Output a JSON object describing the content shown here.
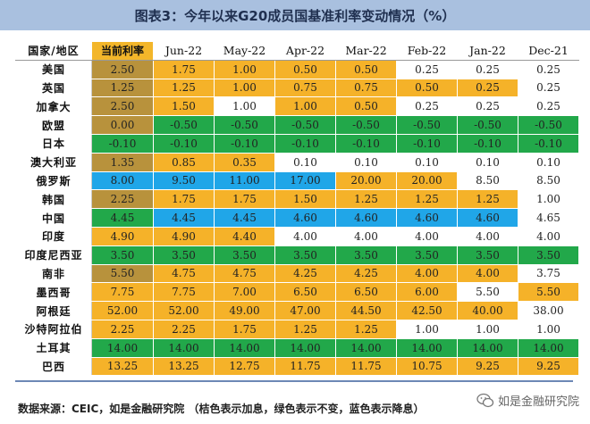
{
  "title": "图表3：今年以来G20成员国基准利率变动情况（%）",
  "table": {
    "headers": [
      "国家/地区",
      "当前利率",
      "Jun-22",
      "May-22",
      "Apr-22",
      "Mar-22",
      "Feb-22",
      "Jan-22",
      "Dec-21"
    ],
    "rows": [
      {
        "country": "美国",
        "values": [
          "2.50",
          "1.75",
          "1.00",
          "0.50",
          "0.50",
          "0.25",
          "0.25",
          "0.25"
        ],
        "colors": [
          "d",
          "o",
          "o",
          "o",
          "o",
          "w",
          "w",
          "w"
        ]
      },
      {
        "country": "英国",
        "values": [
          "1.25",
          "1.25",
          "1.00",
          "0.75",
          "0.75",
          "0.50",
          "0.25",
          "0.25"
        ],
        "colors": [
          "d",
          "o",
          "o",
          "o",
          "o",
          "o",
          "o",
          "w"
        ]
      },
      {
        "country": "加拿大",
        "values": [
          "2.50",
          "1.50",
          "1.00",
          "1.00",
          "0.50",
          "0.25",
          "0.25",
          "0.25"
        ],
        "colors": [
          "d",
          "o",
          "w",
          "o",
          "o",
          "w",
          "w",
          "w"
        ]
      },
      {
        "country": "欧盟",
        "values": [
          "0.00",
          "-0.50",
          "-0.50",
          "-0.50",
          "-0.50",
          "-0.50",
          "-0.50",
          "-0.50"
        ],
        "colors": [
          "d",
          "g",
          "g",
          "g",
          "g",
          "g",
          "g",
          "g"
        ]
      },
      {
        "country": "日本",
        "values": [
          "-0.10",
          "-0.10",
          "-0.10",
          "-0.10",
          "-0.10",
          "-0.10",
          "-0.10",
          "-0.10"
        ],
        "colors": [
          "g",
          "g",
          "g",
          "g",
          "g",
          "g",
          "g",
          "g"
        ]
      },
      {
        "country": "澳大利亚",
        "values": [
          "1.35",
          "0.85",
          "0.35",
          "0.10",
          "0.10",
          "0.10",
          "0.10",
          "0.10"
        ],
        "colors": [
          "d",
          "o",
          "o",
          "w",
          "w",
          "w",
          "w",
          "w"
        ]
      },
      {
        "country": "俄罗斯",
        "values": [
          "8.00",
          "9.50",
          "11.00",
          "17.00",
          "20.00",
          "20.00",
          "8.50",
          "8.50"
        ],
        "colors": [
          "b",
          "b",
          "b",
          "b",
          "o",
          "o",
          "w",
          "w"
        ]
      },
      {
        "country": "韩国",
        "values": [
          "2.25",
          "1.75",
          "1.75",
          "1.50",
          "1.25",
          "1.25",
          "1.25",
          "1.00"
        ],
        "colors": [
          "d",
          "o",
          "o",
          "o",
          "o",
          "o",
          "o",
          "w"
        ]
      },
      {
        "country": "中国",
        "values": [
          "4.45",
          "4.45",
          "4.45",
          "4.60",
          "4.60",
          "4.60",
          "4.60",
          "4.65"
        ],
        "colors": [
          "g",
          "b",
          "b",
          "b",
          "b",
          "b",
          "b",
          "w"
        ]
      },
      {
        "country": "印度",
        "values": [
          "4.90",
          "4.90",
          "4.40",
          "4.00",
          "4.00",
          "4.00",
          "4.00",
          "4.00"
        ],
        "colors": [
          "o",
          "o",
          "o",
          "w",
          "w",
          "w",
          "w",
          "w"
        ]
      },
      {
        "country": "印度尼西亚",
        "values": [
          "3.50",
          "3.50",
          "3.50",
          "3.50",
          "3.50",
          "3.50",
          "3.50",
          "3.50"
        ],
        "colors": [
          "g",
          "g",
          "g",
          "g",
          "g",
          "g",
          "g",
          "g"
        ]
      },
      {
        "country": "南非",
        "values": [
          "5.50",
          "4.75",
          "4.75",
          "4.25",
          "4.25",
          "4.00",
          "4.00",
          "3.75"
        ],
        "colors": [
          "d",
          "o",
          "o",
          "o",
          "o",
          "o",
          "o",
          "w"
        ]
      },
      {
        "country": "墨西哥",
        "values": [
          "7.75",
          "7.75",
          "7.00",
          "6.50",
          "6.50",
          "6.00",
          "5.50",
          "5.50"
        ],
        "colors": [
          "o",
          "o",
          "o",
          "o",
          "o",
          "o",
          "w",
          "o"
        ]
      },
      {
        "country": "阿根廷",
        "values": [
          "52.00",
          "52.00",
          "49.00",
          "47.00",
          "44.50",
          "42.50",
          "40.00",
          "38.00"
        ],
        "colors": [
          "o",
          "o",
          "o",
          "o",
          "o",
          "o",
          "o",
          "w"
        ]
      },
      {
        "country": "沙特阿拉伯",
        "values": [
          "2.25",
          "2.25",
          "1.75",
          "1.25",
          "1.25",
          "1.00",
          "1.00",
          "1.00"
        ],
        "colors": [
          "o",
          "o",
          "o",
          "o",
          "o",
          "w",
          "w",
          "w"
        ]
      },
      {
        "country": "土耳其",
        "values": [
          "14.00",
          "14.00",
          "14.00",
          "14.00",
          "14.00",
          "14.00",
          "14.00",
          "14.00"
        ],
        "colors": [
          "g",
          "g",
          "g",
          "g",
          "g",
          "g",
          "g",
          "g"
        ]
      },
      {
        "country": "巴西",
        "values": [
          "13.25",
          "13.25",
          "12.75",
          "11.75",
          "11.75",
          "10.75",
          "9.25",
          "9.25"
        ],
        "colors": [
          "o",
          "o",
          "o",
          "o",
          "o",
          "o",
          "o",
          "o"
        ]
      }
    ]
  },
  "palette": {
    "o": "#f5b229",
    "g": "#22a84a",
    "b": "#20a6e8",
    "w": "#ffffff",
    "d": "#b8923c"
  },
  "source": "数据来源：CEIC，如是金融研究院   （桔色表示加息，绿色表示不变，蓝色表示降息）",
  "watermark": {
    "text": "如是金融研究院",
    "icon": "wechat-icon"
  }
}
